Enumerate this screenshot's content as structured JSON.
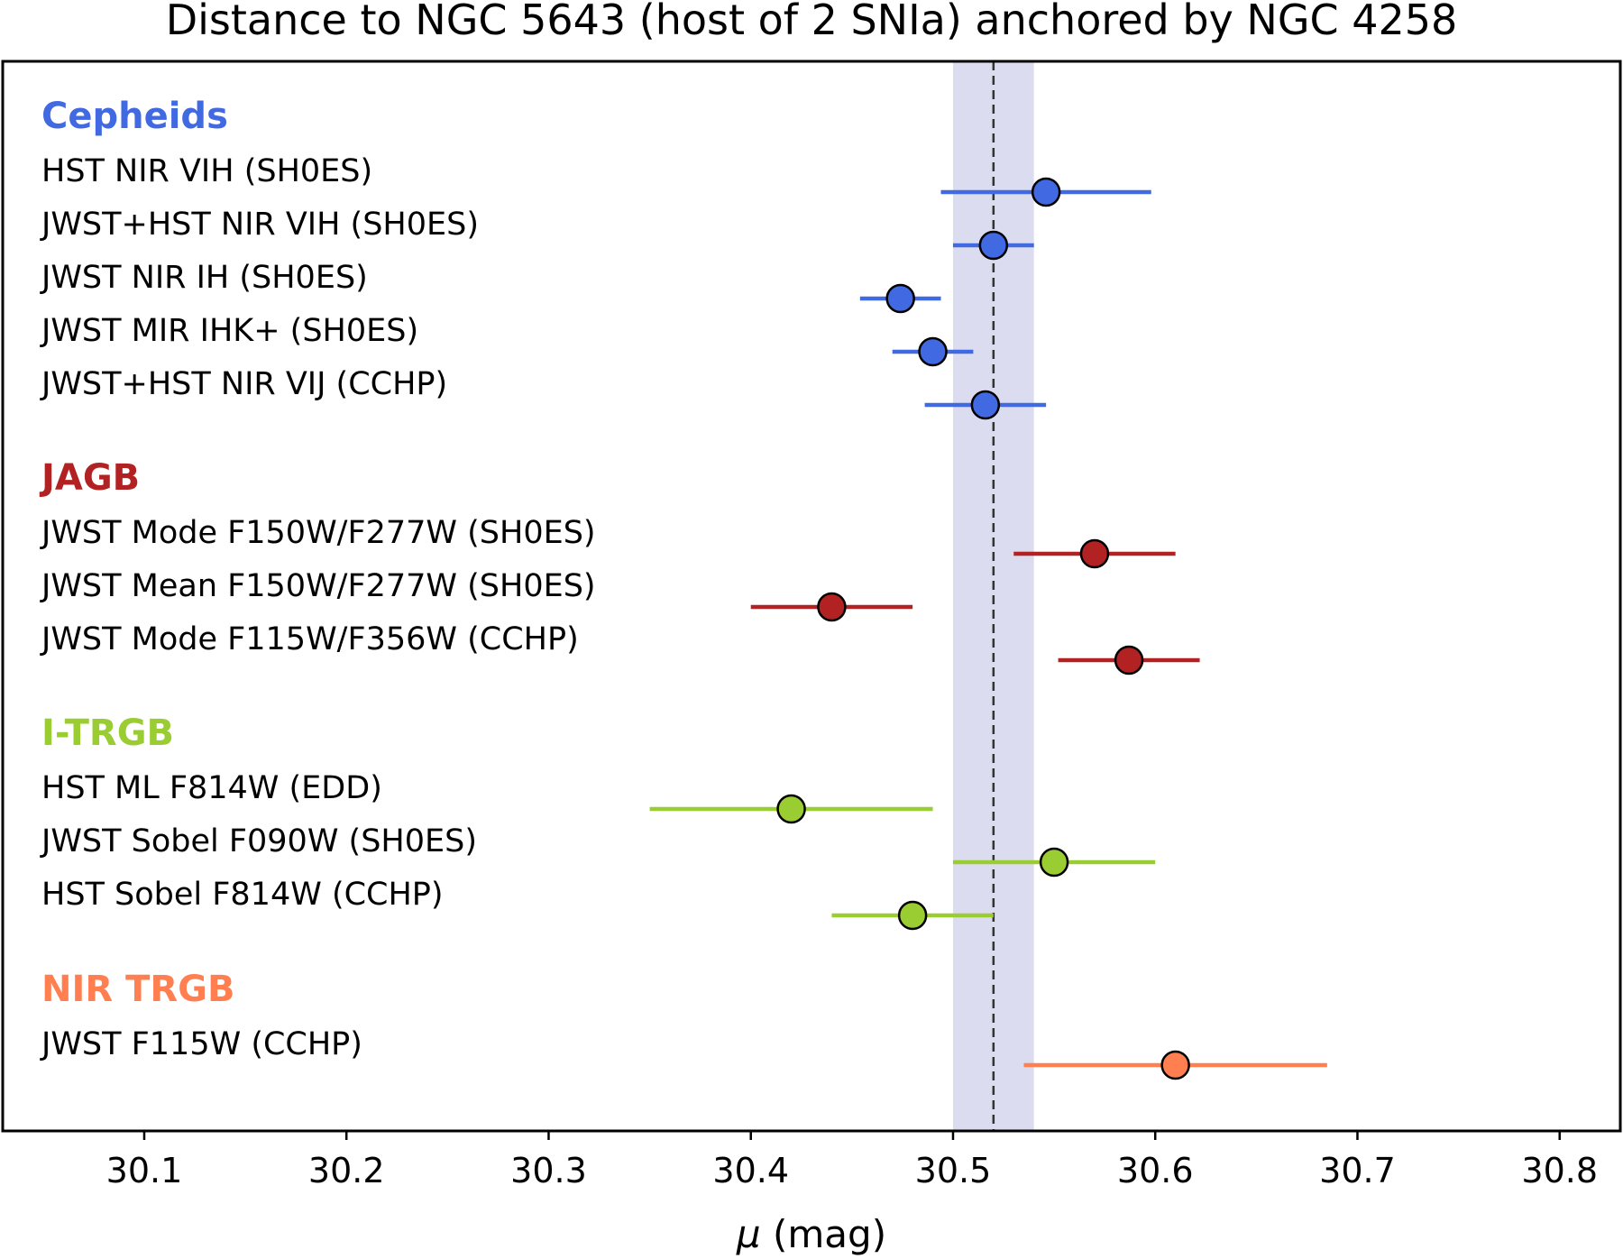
{
  "chart_data": {
    "type": "scatter",
    "title": "Distance to NGC 5643 (host of 2 SNIa) anchored by NGC 4258",
    "xlabel_symbol": "μ",
    "xlabel_unit": " (mag)",
    "xlim": [
      30.03,
      30.83
    ],
    "x_ticks": [
      30.1,
      30.2,
      30.3,
      30.4,
      30.5,
      30.6,
      30.7,
      30.8
    ],
    "x_tick_labels": [
      "30.1",
      "30.2",
      "30.3",
      "30.4",
      "30.5",
      "30.6",
      "30.7",
      "30.8"
    ],
    "reference": {
      "value": 30.52,
      "band": [
        30.5,
        30.54
      ],
      "band_color": "#dcdcf0"
    },
    "groups": [
      {
        "name": "Cepheids",
        "color": "#4169e1",
        "points": [
          {
            "label": "HST NIR VIH (SH0ES)",
            "value": 30.546,
            "err_low": 30.494,
            "err_high": 30.598
          },
          {
            "label": "JWST+HST NIR VIH (SH0ES)",
            "value": 30.52,
            "err_low": 30.5,
            "err_high": 30.54
          },
          {
            "label": "JWST NIR IH (SH0ES)",
            "value": 30.474,
            "err_low": 30.454,
            "err_high": 30.494
          },
          {
            "label": "JWST MIR IHK+  (SH0ES)",
            "value": 30.49,
            "err_low": 30.47,
            "err_high": 30.51
          },
          {
            "label": "JWST+HST NIR VIJ (CCHP)",
            "value": 30.516,
            "err_low": 30.486,
            "err_high": 30.546
          }
        ]
      },
      {
        "name": "JAGB",
        "color": "#b22222",
        "points": [
          {
            "label": "JWST Mode F150W/F277W (SH0ES)",
            "value": 30.57,
            "err_low": 30.53,
            "err_high": 30.61
          },
          {
            "label": "JWST Mean F150W/F277W (SH0ES)",
            "value": 30.44,
            "err_low": 30.4,
            "err_high": 30.48
          },
          {
            "label": "JWST Mode F115W/F356W (CCHP)",
            "value": 30.587,
            "err_low": 30.552,
            "err_high": 30.622
          }
        ]
      },
      {
        "name": "I-TRGB",
        "color": "#9acd32",
        "points": [
          {
            "label": "HST ML F814W   (EDD)",
            "value": 30.42,
            "err_low": 30.35,
            "err_high": 30.49
          },
          {
            "label": "JWST Sobel F090W (SH0ES)",
            "value": 30.55,
            "err_low": 30.5,
            "err_high": 30.6
          },
          {
            "label": "HST Sobel F814W  (CCHP)",
            "value": 30.48,
            "err_low": 30.44,
            "err_high": 30.52
          }
        ]
      },
      {
        "name": "NIR TRGB",
        "color": "#ff7f50",
        "points": [
          {
            "label": "JWST F115W (CCHP)",
            "value": 30.61,
            "err_low": 30.535,
            "err_high": 30.685
          }
        ]
      }
    ],
    "grid": false,
    "legend": "none"
  }
}
